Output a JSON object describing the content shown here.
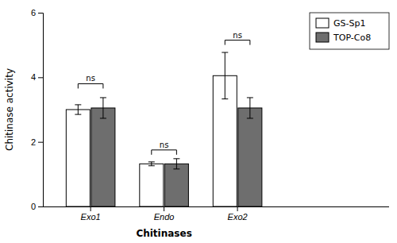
{
  "chart_data": {
    "type": "bar",
    "categories": [
      "Exo1",
      "Endo",
      "Exo2"
    ],
    "series": [
      {
        "name": "GS-Sp1",
        "color": "#FFFFFF",
        "values": [
          3.0,
          1.32,
          4.05
        ],
        "errors": [
          0.15,
          0.06,
          0.72
        ]
      },
      {
        "name": "TOP-Co8",
        "color": "#6e6e6e",
        "values": [
          3.05,
          1.32,
          3.05
        ],
        "errors": [
          0.32,
          0.16,
          0.32
        ]
      }
    ],
    "ylim": [
      0,
      6
    ],
    "yticks": [
      0,
      2,
      4,
      6
    ],
    "ylabel": "Chitinase activity",
    "xlabel": "Chitinases",
    "legend": "upper right",
    "grid": false,
    "annotations": [
      {
        "text": "ns",
        "category": "Exo1",
        "y": 3.8
      },
      {
        "text": "ns",
        "category": "Endo",
        "y": 1.75
      },
      {
        "text": "ns",
        "category": "Exo2",
        "y": 5.15
      }
    ]
  }
}
